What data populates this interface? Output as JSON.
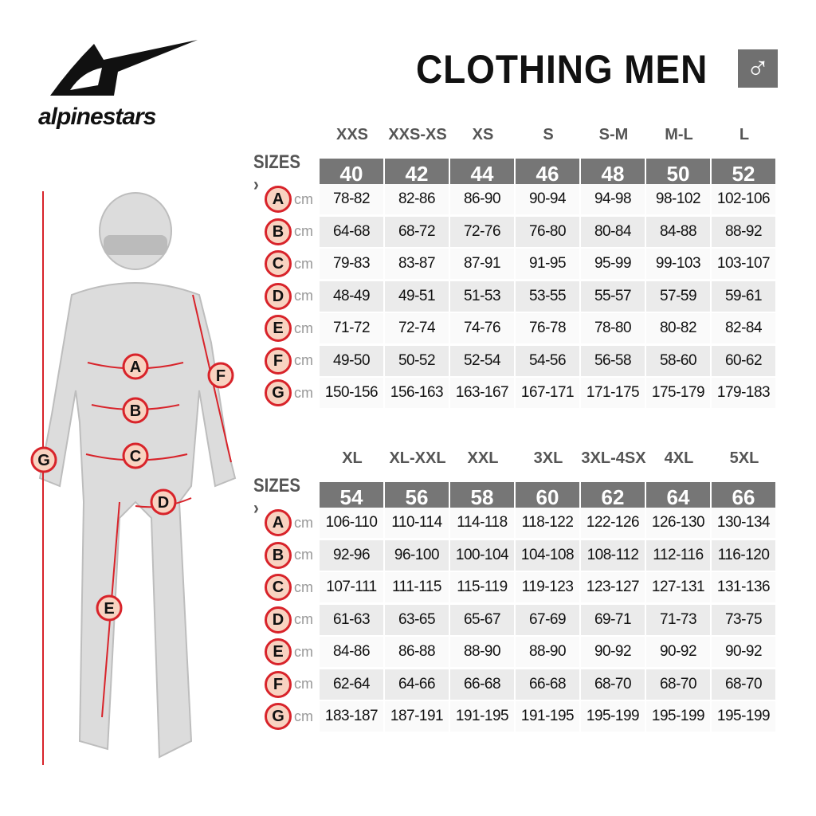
{
  "brand": {
    "name": "alpinestars"
  },
  "header": {
    "title": "CLOTHING MEN",
    "gender_symbol": "♂"
  },
  "colors": {
    "header_bg": "#767676",
    "marker_red": "#d8232a",
    "marker_fill": "#f8d3c1"
  },
  "sizes_label": "SIZES ›",
  "unit": "cm",
  "figure_markers": [
    "A",
    "B",
    "C",
    "D",
    "E",
    "F",
    "G"
  ],
  "tables": [
    {
      "labels": [
        "XXS",
        "XXS-XS",
        "XS",
        "S",
        "S-M",
        "M-L",
        "L"
      ],
      "sizes": [
        "40",
        "42",
        "44",
        "46",
        "48",
        "50",
        "52"
      ],
      "rows": [
        {
          "key": "A",
          "values": [
            "78-82",
            "82-86",
            "86-90",
            "90-94",
            "94-98",
            "98-102",
            "102-106"
          ]
        },
        {
          "key": "B",
          "values": [
            "64-68",
            "68-72",
            "72-76",
            "76-80",
            "80-84",
            "84-88",
            "88-92"
          ]
        },
        {
          "key": "C",
          "values": [
            "79-83",
            "83-87",
            "87-91",
            "91-95",
            "95-99",
            "99-103",
            "103-107"
          ]
        },
        {
          "key": "D",
          "values": [
            "48-49",
            "49-51",
            "51-53",
            "53-55",
            "55-57",
            "57-59",
            "59-61"
          ]
        },
        {
          "key": "E",
          "values": [
            "71-72",
            "72-74",
            "74-76",
            "76-78",
            "78-80",
            "80-82",
            "82-84"
          ]
        },
        {
          "key": "F",
          "values": [
            "49-50",
            "50-52",
            "52-54",
            "54-56",
            "56-58",
            "58-60",
            "60-62"
          ]
        },
        {
          "key": "G",
          "values": [
            "150-156",
            "156-163",
            "163-167",
            "167-171",
            "171-175",
            "175-179",
            "179-183"
          ]
        }
      ]
    },
    {
      "labels": [
        "XL",
        "XL-XXL",
        "XXL",
        "3XL",
        "3XL-4SX",
        "4XL",
        "5XL"
      ],
      "sizes": [
        "54",
        "56",
        "58",
        "60",
        "62",
        "64",
        "66"
      ],
      "rows": [
        {
          "key": "A",
          "values": [
            "106-110",
            "110-114",
            "114-118",
            "118-122",
            "122-126",
            "126-130",
            "130-134"
          ]
        },
        {
          "key": "B",
          "values": [
            "92-96",
            "96-100",
            "100-104",
            "104-108",
            "108-112",
            "112-116",
            "116-120"
          ]
        },
        {
          "key": "C",
          "values": [
            "107-111",
            "111-115",
            "115-119",
            "119-123",
            "123-127",
            "127-131",
            "131-136"
          ]
        },
        {
          "key": "D",
          "values": [
            "61-63",
            "63-65",
            "65-67",
            "67-69",
            "69-71",
            "71-73",
            "73-75"
          ]
        },
        {
          "key": "E",
          "values": [
            "84-86",
            "86-88",
            "88-90",
            "88-90",
            "90-92",
            "90-92",
            "90-92"
          ]
        },
        {
          "key": "F",
          "values": [
            "62-64",
            "64-66",
            "66-68",
            "66-68",
            "68-70",
            "68-70",
            "68-70"
          ]
        },
        {
          "key": "G",
          "values": [
            "183-187",
            "187-191",
            "191-195",
            "191-195",
            "195-199",
            "195-199",
            "195-199"
          ]
        }
      ]
    }
  ]
}
